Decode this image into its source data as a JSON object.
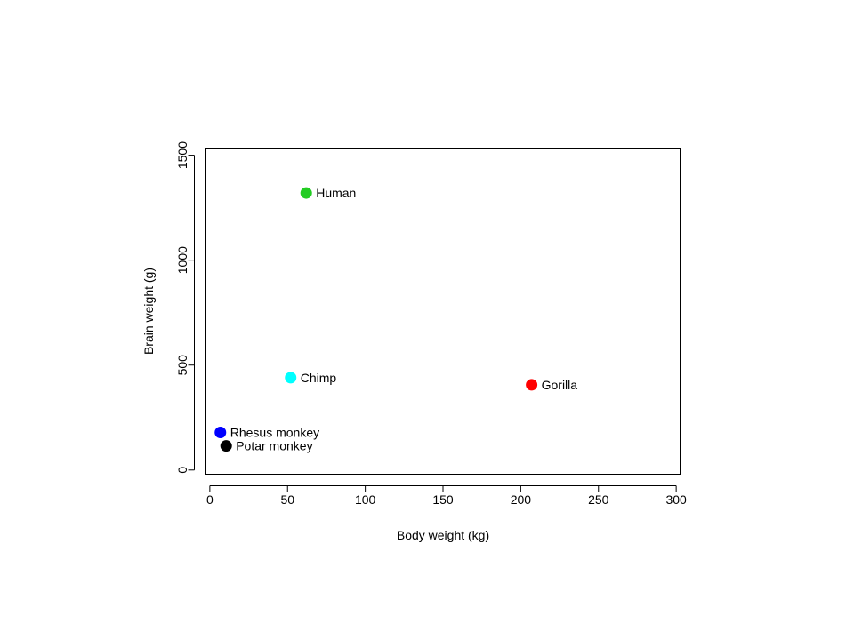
{
  "chart_data": {
    "type": "scatter",
    "title": "",
    "xlabel": "Body weight (kg)",
    "ylabel": "Brain weight (g)",
    "xlim": [
      0,
      300
    ],
    "ylim": [
      0,
      1500
    ],
    "xticks": [
      0,
      50,
      100,
      150,
      200,
      250,
      300
    ],
    "yticks": [
      0,
      500,
      1000,
      1500
    ],
    "grid": false,
    "legend": "none",
    "points": [
      {
        "label": "Human",
        "x": 62,
        "y": 1320,
        "color": "#22cc22"
      },
      {
        "label": "Chimp",
        "x": 52,
        "y": 440,
        "color": "#00ffff"
      },
      {
        "label": "Gorilla",
        "x": 207,
        "y": 406,
        "color": "#ff0000"
      },
      {
        "label": "Rhesus monkey",
        "x": 6.8,
        "y": 179,
        "color": "#0000ff"
      },
      {
        "label": "Potar monkey",
        "x": 10.5,
        "y": 115,
        "color": "#000000"
      }
    ]
  }
}
